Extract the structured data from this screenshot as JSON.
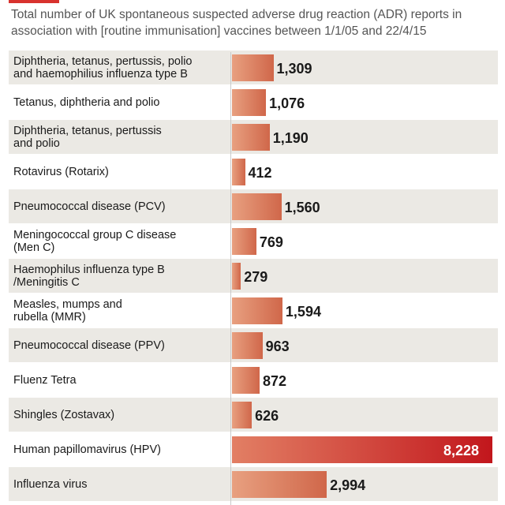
{
  "title": "Total number of UK spontaneous suspected adverse drug reaction (ADR) reports in association with [routine immunisation] vaccines between 1/1/05 and 22/4/15",
  "colors": {
    "accent": "#d8322e",
    "bar": "#d0674a",
    "bar_highlight": "#c2161c",
    "row_shade": "#ebe9e4"
  },
  "chart_data": {
    "type": "bar",
    "orientation": "horizontal",
    "title": "Total number of UK spontaneous suspected adverse drug reaction (ADR) reports in association with [routine immunisation] vaccines between 1/1/05 and 22/4/15",
    "categories": [
      "Diphtheria, tetanus, pertussis, polio\nand haemophilius influenza type B",
      "Tetanus, diphtheria and polio",
      "Diphtheria, tetanus, pertussis\nand polio",
      "Rotavirus (Rotarix)",
      "Pneumococcal disease (PCV)",
      "Meningococcal group C disease\n(Men C)",
      "Haemophilus influenza type B\n/Meningitis C",
      "Measles, mumps and\nrubella (MMR)",
      "Pneumococcal disease (PPV)",
      "Fluenz Tetra",
      "Shingles (Zostavax)",
      "Human papillomavirus (HPV)",
      "Influenza virus"
    ],
    "values": [
      1309,
      1076,
      1190,
      412,
      1560,
      769,
      279,
      1594,
      963,
      872,
      626,
      8228,
      2994
    ],
    "value_labels": [
      "1,309",
      "1,076",
      "1,190",
      "412",
      "1,560",
      "769",
      "279",
      "1,594",
      "963",
      "872",
      "626",
      "8,228",
      "2,994"
    ],
    "xlim": [
      0,
      8228
    ],
    "grid": false,
    "legend": "none"
  }
}
